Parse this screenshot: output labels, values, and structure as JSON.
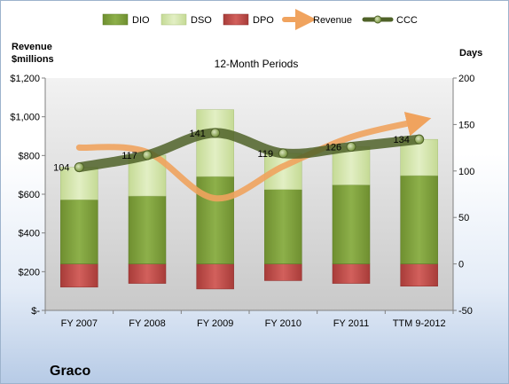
{
  "company": "Graco",
  "chart_data": {
    "type": "bar",
    "title": "12-Month Periods",
    "categories": [
      "FY 2007",
      "FY 2008",
      "FY 2009",
      "FY 2010",
      "FY 2011",
      "TTM 9-2012"
    ],
    "y_left": {
      "label_line1": "Revenue",
      "label_line2": "$millions",
      "range": [
        0,
        1200
      ],
      "ticks": [
        0,
        200,
        400,
        600,
        800,
        1000,
        1200
      ],
      "tick_labels": [
        "$-",
        "$200",
        "$400",
        "$600",
        "$800",
        "$1,000",
        "$1,200"
      ]
    },
    "y_right": {
      "label": "Days",
      "range": [
        -50,
        200
      ],
      "ticks": [
        -50,
        0,
        50,
        100,
        150,
        200
      ],
      "tick_labels": [
        "-50",
        "0",
        "50",
        "100",
        "150",
        "200"
      ]
    },
    "legend": {
      "placement": "top",
      "entries": [
        "DIO",
        "DSO",
        "DPO",
        "Revenue",
        "CCC"
      ]
    },
    "series": [
      {
        "name": "DIO",
        "type": "stacked-bar",
        "axis": "right",
        "values": [
          69,
          73,
          94,
          80,
          85,
          95
        ]
      },
      {
        "name": "DSO",
        "type": "stacked-bar",
        "axis": "right",
        "values": [
          35,
          44,
          72,
          39,
          41,
          39
        ]
      },
      {
        "name": "DPO",
        "type": "bar-negative",
        "axis": "right",
        "values": [
          -25,
          -21,
          -27,
          -18,
          -21,
          -24
        ]
      },
      {
        "name": "Revenue",
        "type": "line",
        "axis": "left",
        "values": [
          841,
          817,
          579,
          744,
          895,
          978
        ]
      },
      {
        "name": "CCC",
        "type": "line",
        "axis": "right",
        "values": [
          104,
          117,
          141,
          119,
          126,
          134
        ]
      }
    ],
    "data_labels": [
      "104",
      "117",
      "141",
      "119",
      "126",
      "134"
    ],
    "colors": {
      "DIO": "#7a9a3a",
      "DSO": "#d3e4a9",
      "DPO": "#c0504d",
      "Revenue": "#f0a35e",
      "CCC": "#4f6228"
    },
    "grid": false
  }
}
